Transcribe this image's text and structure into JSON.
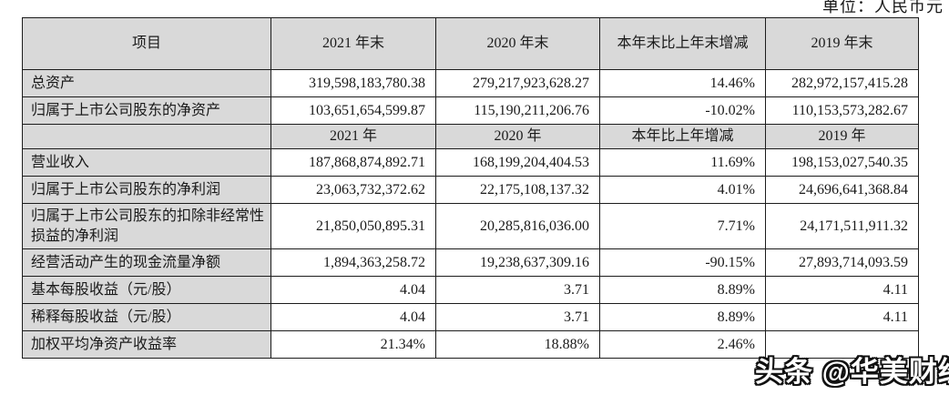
{
  "unit_label": "单位：人民币元",
  "watermark": "头条 @华美财经",
  "colors": {
    "header_bg": "#d9d9d9",
    "border": "#1c1c1c",
    "text": "#1a1a1a",
    "watermark_fill": "#ffffff",
    "watermark_outline": "#111111"
  },
  "table": {
    "rows": [
      {
        "type": "header",
        "cells": [
          "项目",
          "2021 年末",
          "2020 年末",
          "本年末比上年末增减",
          "2019 年末"
        ]
      },
      {
        "type": "data",
        "label": "总资产",
        "values": [
          "319,598,183,780.38",
          "279,217,923,628.27",
          "14.46%",
          "282,972,157,415.28"
        ]
      },
      {
        "type": "data",
        "label": "归属于上市公司股东的净资产",
        "values": [
          "103,651,654,599.87",
          "115,190,211,206.76",
          "-10.02%",
          "110,153,573,282.67"
        ]
      },
      {
        "type": "subheader",
        "cells": [
          "",
          "2021 年",
          "2020 年",
          "本年比上年增减",
          "2019 年"
        ]
      },
      {
        "type": "data",
        "label": "营业收入",
        "values": [
          "187,868,874,892.71",
          "168,199,204,404.53",
          "11.69%",
          "198,153,027,540.35"
        ]
      },
      {
        "type": "data",
        "label": "归属于上市公司股东的净利润",
        "values": [
          "23,063,732,372.62",
          "22,175,108,137.32",
          "4.01%",
          "24,696,641,368.84"
        ]
      },
      {
        "type": "data",
        "label": "归属于上市公司股东的扣除非经常性损益的净利润",
        "values": [
          "21,850,050,895.31",
          "20,285,816,036.00",
          "7.71%",
          "24,171,511,911.32"
        ]
      },
      {
        "type": "data",
        "label": "经营活动产生的现金流量净额",
        "values": [
          "1,894,363,258.72",
          "19,238,637,309.16",
          "-90.15%",
          "27,893,714,093.59"
        ]
      },
      {
        "type": "data",
        "label": "基本每股收益（元/股）",
        "values": [
          "4.04",
          "3.71",
          "8.89%",
          "4.11"
        ]
      },
      {
        "type": "data",
        "label": "稀释每股收益（元/股）",
        "values": [
          "4.04",
          "3.71",
          "8.89%",
          "4.11"
        ]
      },
      {
        "type": "data",
        "label": "加权平均净资产收益率",
        "values": [
          "21.34%",
          "18.88%",
          "2.46%",
          ""
        ]
      }
    ]
  }
}
